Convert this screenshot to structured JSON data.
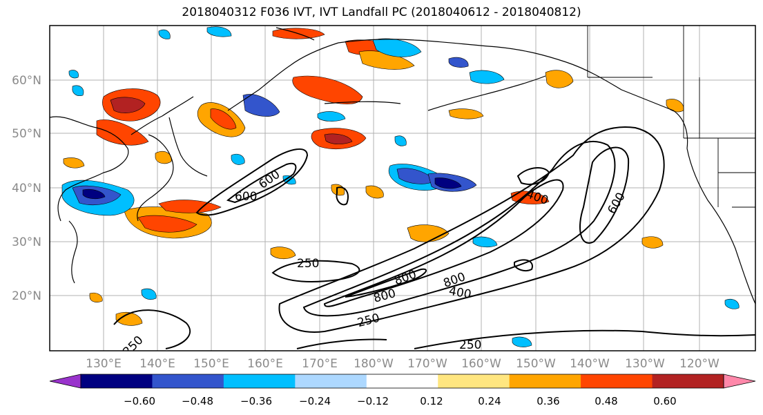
{
  "title": "2018040312 F036 IVT, IVT Landfall PC (2018040612 - 2018040812)",
  "map": {
    "lat_labels": [
      "60°N",
      "50°N",
      "40°N",
      "30°N",
      "20°N"
    ],
    "lon_labels": [
      "130°E",
      "140°E",
      "150°E",
      "160°E",
      "170°E",
      "180°W",
      "170°W",
      "160°W",
      "150°W",
      "140°W",
      "130°W",
      "120°W"
    ],
    "contour_labels": [
      "600",
      "600",
      "400",
      "600",
      "250",
      "800",
      "800",
      "800",
      "400",
      "250",
      "250",
      "250"
    ]
  },
  "colorbar": {
    "ticks": [
      "−0.60",
      "−0.48",
      "−0.36",
      "−0.24",
      "−0.12",
      "0.12",
      "0.24",
      "0.36",
      "0.48",
      "0.60"
    ],
    "colors": [
      "#9933cc",
      "#000080",
      "#3355cc",
      "#00bfff",
      "#add8ff",
      "#ffffff",
      "#ffe680",
      "#ffa500",
      "#ff4500",
      "#b22222",
      "#ff88aa"
    ]
  }
}
